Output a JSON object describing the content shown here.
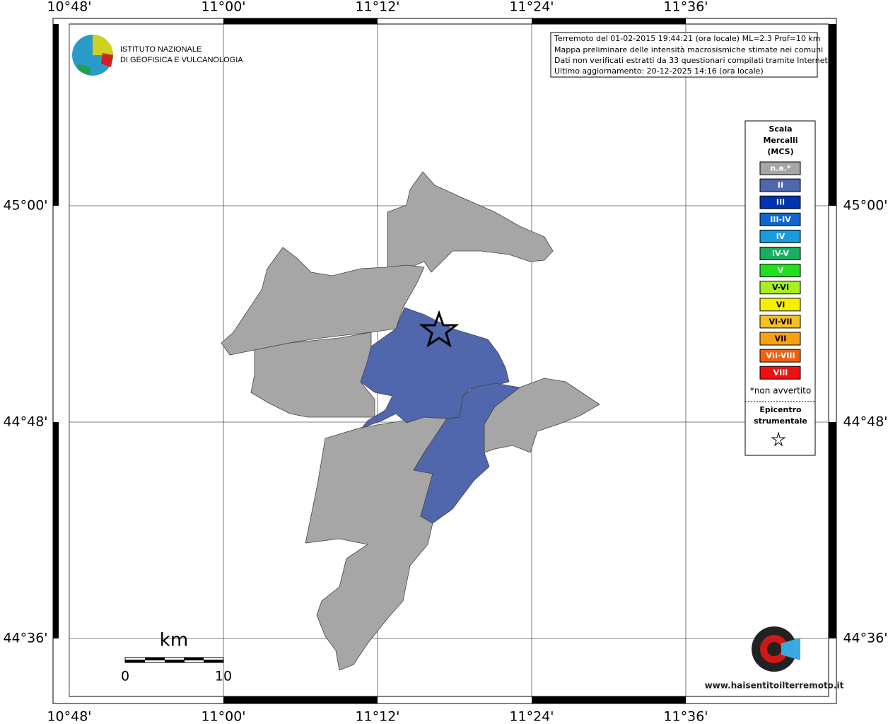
{
  "map": {
    "info": [
      "Terremoto del 01-02-2015 19:44:21 (ora locale) ML=2.3 Prof=10 km",
      "Mappa preliminare delle intensità macrosismiche stimate nei comuni",
      "Dati non verificati estratti da 33 questionari compilati tramite Internet.",
      "Ultimo aggiornamento: 20-12-2025 14:16 (ora locale)"
    ],
    "lon_ticks": [
      {
        "value": 10.8,
        "label": "10°48'"
      },
      {
        "value": 11.0,
        "label": "11°00'"
      },
      {
        "value": 11.2,
        "label": "11°12'"
      },
      {
        "value": 11.4,
        "label": "11°24'"
      },
      {
        "value": 11.6,
        "label": "11°36'"
      }
    ],
    "lat_ticks": [
      {
        "value": 45.0,
        "label": "45°00'"
      },
      {
        "value": 44.8,
        "label": "44°48'"
      },
      {
        "value": 44.6,
        "label": "44°36'"
      }
    ],
    "logo": [
      "ISTITUTO NAZIONALE",
      "DI GEOFISICA E VULCANOLOGIA"
    ],
    "legend": {
      "title": [
        "Scala",
        "Mercalli",
        "(MCS)"
      ],
      "items": [
        {
          "label": "n.a.*",
          "color": "#a6a6a6"
        },
        {
          "label": "II",
          "color": "#5066ad"
        },
        {
          "label": "III",
          "color": "#0033b0"
        },
        {
          "label": "III-IV",
          "color": "#1066d0"
        },
        {
          "label": "IV",
          "color": "#1a9be0"
        },
        {
          "label": "IV-V",
          "color": "#18b060"
        },
        {
          "label": "V",
          "color": "#22e020"
        },
        {
          "label": "V-VI",
          "color": "#a8ef20"
        },
        {
          "label": "VI",
          "color": "#f5f000"
        },
        {
          "label": "VI-VII",
          "color": "#f5c020"
        },
        {
          "label": "VII",
          "color": "#f8a010"
        },
        {
          "label": "VII-VIII",
          "color": "#f06010"
        },
        {
          "label": "VIII",
          "color": "#f01010"
        }
      ],
      "note": "*non avvertito",
      "epicenter": [
        "Epicentro",
        "strumentale"
      ]
    },
    "scale": {
      "unit": "km",
      "labels": [
        "0",
        "10"
      ]
    },
    "site": "www.haisentitoilterremoto.it"
  }
}
